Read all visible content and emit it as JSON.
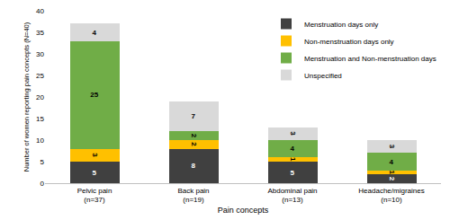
{
  "chart_data": {
    "type": "bar",
    "stacked": true,
    "data_labels": true,
    "grid": false,
    "legend": "upper right",
    "x_label": "Pain concepts",
    "y_label": "Number of women reporting pain concepts (N=40)",
    "categories": [
      "Pelvic pain\n(n=37)",
      "Back pain\n(n=19)",
      "Abdominal pain\n(n=13)",
      "Headache/migraines\n(n=10)"
    ],
    "series": [
      {
        "name": "Menstruation days only",
        "color": "#404040",
        "values": [
          5,
          8,
          5,
          2
        ]
      },
      {
        "name": "Non-menstruation days only",
        "color": "#ffc000",
        "values": [
          3,
          2,
          1,
          1
        ]
      },
      {
        "name": "Menstruation and Non-menstruation days",
        "color": "#70ad47",
        "values": [
          25,
          2,
          4,
          4
        ]
      },
      {
        "name": "Unspecified",
        "color": "#d9d9d9",
        "values": [
          4,
          7,
          3,
          3
        ]
      }
    ],
    "ylim": [
      0,
      40
    ],
    "yticks": [
      0,
      5,
      10,
      15,
      20,
      25,
      30,
      35,
      40
    ]
  }
}
